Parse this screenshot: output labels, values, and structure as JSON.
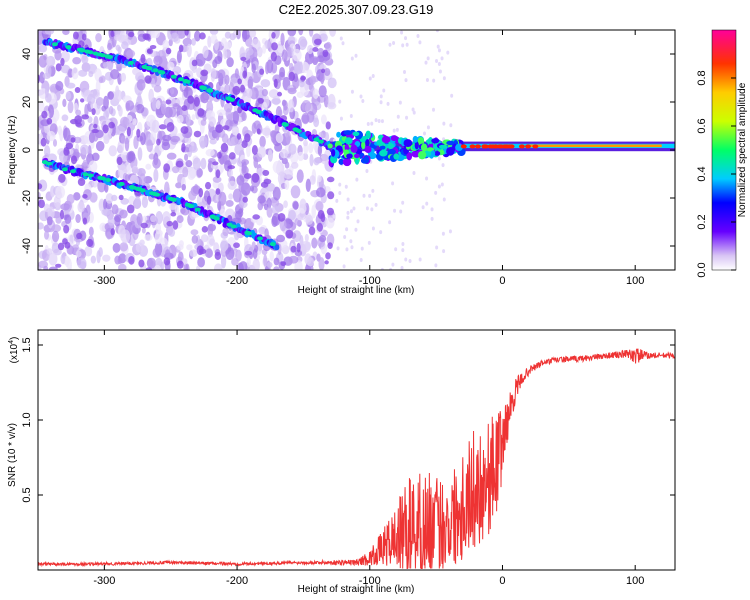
{
  "title": "C2E2.2025.307.09.23.G19",
  "chart_data": [
    {
      "type": "heatmap",
      "name": "spectrogram",
      "xlabel": "Height of straight line (km)",
      "ylabel": "Frequency (Hz)",
      "xlim": [
        -350,
        130
      ],
      "ylim": [
        -50,
        50
      ],
      "xticks": [
        -300,
        -200,
        -100,
        0,
        100
      ],
      "xtick_labels": [
        "-300",
        "-200",
        "-100",
        "0",
        "100"
      ],
      "yticks": [
        -40,
        -20,
        0,
        20,
        40
      ],
      "ytick_labels": [
        "-40",
        "-20",
        "0",
        "20",
        "40"
      ],
      "noise_region": {
        "x": [
          -350,
          -128
        ]
      },
      "features": [
        {
          "name": "descending-track-upper",
          "x": [
            -345,
            -320,
            -290,
            -260,
            -230,
            -200,
            -180,
            -165,
            -150,
            -135,
            -125
          ],
          "y": [
            45,
            42,
            38,
            33,
            27,
            20,
            15,
            11,
            7,
            3,
            0
          ]
        },
        {
          "name": "descending-track-lower",
          "x": [
            -345,
            -330,
            -300,
            -270,
            -240,
            -210,
            -190,
            -170
          ],
          "y": [
            -5,
            -8,
            -12,
            -17,
            -22,
            -30,
            -35,
            -40
          ]
        },
        {
          "name": "carrier-line",
          "x": [
            -130,
            -100,
            -70,
            -40,
            -20,
            0,
            40,
            80,
            100,
            130
          ],
          "y": [
            0,
            1,
            1,
            1.5,
            2,
            2,
            2,
            2,
            2,
            2
          ]
        }
      ],
      "colorbar": {
        "label": "Normalized spectral amplitude",
        "range": [
          0,
          1
        ],
        "ticks": [
          0.0,
          0.2,
          0.4,
          0.6,
          0.8
        ],
        "tick_labels": [
          "0.0",
          "0.2",
          "0.4",
          "0.6",
          "0.8"
        ]
      }
    },
    {
      "type": "line",
      "name": "snr",
      "xlabel": "Height of straight line (km)",
      "ylabel": "SNR (10 * v/v)",
      "yscale_label": "(x10",
      "yscale_exp": "4",
      "yscale_close": ")",
      "xlim": [
        -350,
        130
      ],
      "ylim": [
        0,
        1.6
      ],
      "xticks": [
        -300,
        -200,
        -100,
        0,
        100
      ],
      "xtick_labels": [
        "-300",
        "-200",
        "-100",
        "0",
        "100"
      ],
      "yticks": [
        0.5,
        1.0,
        1.5
      ],
      "ytick_labels": [
        "0.5",
        "1.0",
        "1.5"
      ],
      "color": "#ee3333",
      "envelope": {
        "x": [
          -350,
          -300,
          -250,
          -200,
          -150,
          -110,
          -100,
          -90,
          -80,
          -70,
          -60,
          -50,
          -40,
          -30,
          -20,
          -12,
          -5,
          0,
          5,
          10,
          15,
          20,
          30,
          40,
          60,
          80,
          95,
          100,
          110,
          130
        ],
        "y_mean": [
          0.04,
          0.04,
          0.05,
          0.04,
          0.05,
          0.05,
          0.08,
          0.15,
          0.22,
          0.28,
          0.3,
          0.28,
          0.32,
          0.45,
          0.55,
          0.6,
          0.7,
          0.85,
          1.05,
          1.2,
          1.28,
          1.33,
          1.38,
          1.4,
          1.41,
          1.43,
          1.44,
          1.43,
          1.43,
          1.43
        ],
        "y_amp": [
          0.01,
          0.01,
          0.01,
          0.01,
          0.01,
          0.02,
          0.05,
          0.12,
          0.22,
          0.35,
          0.38,
          0.35,
          0.3,
          0.4,
          0.4,
          0.4,
          0.35,
          0.25,
          0.12,
          0.08,
          0.04,
          0.03,
          0.02,
          0.02,
          0.02,
          0.02,
          0.03,
          0.06,
          0.02,
          0.02
        ]
      }
    }
  ]
}
